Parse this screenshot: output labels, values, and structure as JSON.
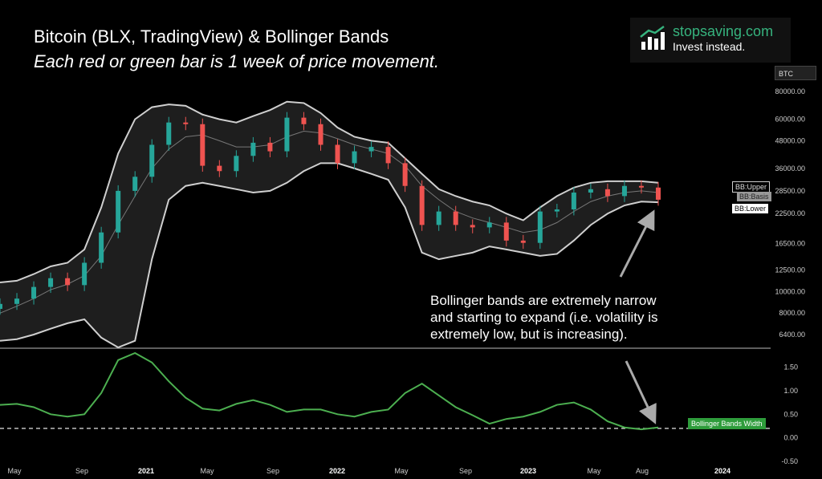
{
  "header": {
    "title": "Bitcoin (BLX, TradingView) & Bollinger Bands",
    "subtitle": "Each red or green bar is 1 week of price movement."
  },
  "brand": {
    "name": "stopsaving.com",
    "tagline": "Invest instead.",
    "icon": "bar-chart-up-icon",
    "color": "#36b37e"
  },
  "annotation": {
    "lines": [
      "Bollinger bands are extremely narrow",
      "and starting to expand (i.e. volatility is",
      "extremely low, but is increasing)."
    ]
  },
  "chart_data": [
    {
      "type": "line",
      "name_label": "BTC",
      "price_axis_ticks": [
        "80000.00",
        "60000.00",
        "48000.00",
        "36000.00",
        "28500.00",
        "22500.00",
        "16500.00",
        "12500.00",
        "10000.00",
        "8000.00",
        "6400.00"
      ],
      "y_scale": "log",
      "x_ticks": [
        "May",
        "Sep",
        "2021",
        "May",
        "Sep",
        "2022",
        "May",
        "Sep",
        "2023",
        "May",
        "Aug",
        "2024"
      ],
      "series_labels": [
        "BB:Upper",
        "BB:Basis",
        "BB:Lower"
      ],
      "colors": {
        "up": "#26a69a",
        "down": "#ef5350",
        "bands": "#cfcfcf",
        "fill": "#1e1e1e",
        "basis": "#777777"
      },
      "price": {
        "x": [
          "2020-05",
          "2020-06",
          "2020-07",
          "2020-08",
          "2020-09",
          "2020-10",
          "2020-11",
          "2020-12",
          "2021-01",
          "2021-02",
          "2021-03",
          "2021-04",
          "2021-05",
          "2021-06",
          "2021-07",
          "2021-08",
          "2021-09",
          "2021-10",
          "2021-11",
          "2021-12",
          "2022-01",
          "2022-02",
          "2022-03",
          "2022-04",
          "2022-05",
          "2022-06",
          "2022-07",
          "2022-08",
          "2022-09",
          "2022-10",
          "2022-11",
          "2022-12",
          "2023-01",
          "2023-02",
          "2023-03",
          "2023-04",
          "2023-05",
          "2023-06",
          "2023-07",
          "2023-08"
        ],
        "close": [
          8800,
          9300,
          10500,
          11500,
          10700,
          13500,
          18500,
          28500,
          33000,
          46000,
          58000,
          57000,
          37000,
          35000,
          41000,
          47000,
          43000,
          61000,
          57000,
          46000,
          38000,
          43000,
          45000,
          38000,
          30000,
          20000,
          23000,
          20000,
          19500,
          20500,
          17000,
          16600,
          23000,
          23500,
          28000,
          29000,
          27000,
          30000,
          29500,
          26000
        ],
        "upper": [
          11000,
          11200,
          12000,
          13000,
          13500,
          15500,
          24000,
          42000,
          60000,
          68000,
          70000,
          69000,
          63000,
          60000,
          58000,
          62000,
          66000,
          72000,
          71000,
          64000,
          55000,
          50000,
          48000,
          47000,
          40000,
          34000,
          29000,
          27000,
          25500,
          24500,
          22500,
          21000,
          24000,
          27000,
          29500,
          31000,
          31500,
          31500,
          31500,
          31000
        ],
        "basis": [
          8000,
          8600,
          9300,
          10200,
          10800,
          11800,
          14500,
          20000,
          27000,
          36000,
          44000,
          50000,
          51000,
          48000,
          45000,
          45000,
          46000,
          50000,
          53000,
          52000,
          49000,
          46000,
          44000,
          42000,
          37000,
          30000,
          26000,
          23000,
          21500,
          20500,
          19500,
          18500,
          19000,
          20500,
          23000,
          25500,
          27000,
          28000,
          28500,
          28000
        ],
        "lower": [
          6000,
          6100,
          6400,
          6800,
          7200,
          7500,
          6200,
          5600,
          6000,
          14000,
          26000,
          30000,
          31000,
          30000,
          29000,
          28000,
          28500,
          31000,
          35000,
          38000,
          38000,
          36000,
          34000,
          32000,
          24000,
          15000,
          14000,
          14500,
          15000,
          16000,
          15500,
          15000,
          14500,
          14800,
          17000,
          20000,
          22500,
          24500,
          25500,
          25300
        ]
      }
    },
    {
      "type": "line",
      "series_labels": [
        "Bollinger Bands Width"
      ],
      "y_ticks": [
        "1.50",
        "1.00",
        "0.50",
        "0.00",
        "-0.50"
      ],
      "ylim": [
        -0.5,
        1.8
      ],
      "reference_line": 0.2,
      "color": "#4caf50",
      "x": [
        "2020-05",
        "2020-06",
        "2020-07",
        "2020-08",
        "2020-09",
        "2020-10",
        "2020-11",
        "2020-12",
        "2021-01",
        "2021-02",
        "2021-03",
        "2021-04",
        "2021-05",
        "2021-06",
        "2021-07",
        "2021-08",
        "2021-09",
        "2021-10",
        "2021-11",
        "2021-12",
        "2022-01",
        "2022-02",
        "2022-03",
        "2022-04",
        "2022-05",
        "2022-06",
        "2022-07",
        "2022-08",
        "2022-09",
        "2022-10",
        "2022-11",
        "2022-12",
        "2023-01",
        "2023-02",
        "2023-03",
        "2023-04",
        "2023-05",
        "2023-06",
        "2023-07",
        "2023-08"
      ],
      "values": [
        0.7,
        0.72,
        0.65,
        0.5,
        0.45,
        0.5,
        0.95,
        1.65,
        1.8,
        1.6,
        1.2,
        0.85,
        0.62,
        0.58,
        0.72,
        0.8,
        0.7,
        0.55,
        0.6,
        0.6,
        0.5,
        0.45,
        0.55,
        0.6,
        0.95,
        1.15,
        0.9,
        0.65,
        0.48,
        0.3,
        0.4,
        0.45,
        0.55,
        0.7,
        0.75,
        0.6,
        0.35,
        0.22,
        0.18,
        0.22
      ]
    }
  ]
}
